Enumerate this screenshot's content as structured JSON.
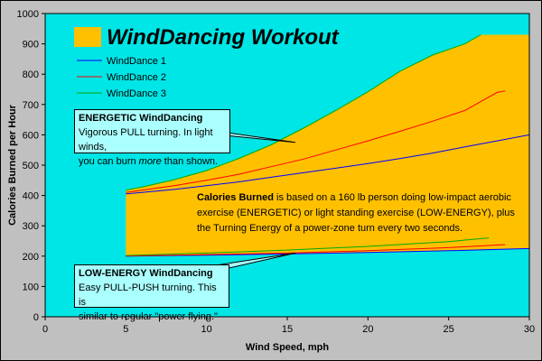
{
  "chart_data": {
    "type": "line",
    "title": "WindDancing Workout",
    "xlabel": "Wind Speed, mph",
    "ylabel": "Calories Burned per Hour",
    "xlim": [
      0,
      30
    ],
    "ylim": [
      0,
      1000
    ],
    "x_ticks": [
      "0",
      "5",
      "10",
      "15",
      "20",
      "25",
      "30"
    ],
    "y_ticks": [
      "0",
      "100",
      "200",
      "300",
      "400",
      "500",
      "600",
      "700",
      "800",
      "900",
      "1000"
    ],
    "grid": false,
    "legend_position": "top-left",
    "background_color": "#00e5e5",
    "band_color": "#ffc000",
    "band": {
      "upper": [
        [
          5,
          418
        ],
        [
          6,
          428
        ],
        [
          8,
          452
        ],
        [
          10,
          482
        ],
        [
          12,
          522
        ],
        [
          14,
          567
        ],
        [
          16,
          622
        ],
        [
          18,
          680
        ],
        [
          20,
          742
        ],
        [
          22,
          810
        ],
        [
          24,
          863
        ],
        [
          26,
          900
        ],
        [
          27,
          930
        ],
        [
          30,
          930
        ]
      ],
      "lower": [
        [
          5,
          200
        ],
        [
          10,
          205
        ],
        [
          15,
          208
        ],
        [
          20,
          212
        ],
        [
          25,
          218
        ],
        [
          30,
          225
        ]
      ]
    },
    "series": [
      {
        "name": "WindDance 1",
        "color": "#0000ff",
        "energetic": [
          [
            5,
            405
          ],
          [
            8,
            420
          ],
          [
            10,
            432
          ],
          [
            12,
            445
          ],
          [
            14,
            460
          ],
          [
            16,
            475
          ],
          [
            18,
            490
          ],
          [
            20,
            505
          ],
          [
            22,
            522
          ],
          [
            24,
            540
          ],
          [
            26,
            560
          ],
          [
            28,
            580
          ],
          [
            30,
            600
          ]
        ],
        "low_energy": [
          [
            5,
            200
          ],
          [
            10,
            203
          ],
          [
            15,
            207
          ],
          [
            20,
            212
          ],
          [
            25,
            218
          ],
          [
            30,
            225
          ]
        ]
      },
      {
        "name": "WindDance 2",
        "color": "#ff0000",
        "energetic": [
          [
            5,
            410
          ],
          [
            8,
            432
          ],
          [
            10,
            450
          ],
          [
            12,
            470
          ],
          [
            14,
            495
          ],
          [
            16,
            520
          ],
          [
            18,
            550
          ],
          [
            20,
            580
          ],
          [
            22,
            612
          ],
          [
            24,
            645
          ],
          [
            26,
            680
          ],
          [
            28,
            740
          ],
          [
            28.5,
            745
          ]
        ],
        "low_energy": [
          [
            5,
            200
          ],
          [
            10,
            205
          ],
          [
            15,
            210
          ],
          [
            20,
            218
          ],
          [
            25,
            228
          ],
          [
            28.5,
            238
          ]
        ]
      },
      {
        "name": "WindDance 3",
        "color": "#00aa00",
        "energetic": [
          [
            5,
            418
          ],
          [
            6,
            428
          ],
          [
            8,
            452
          ],
          [
            10,
            482
          ],
          [
            12,
            522
          ],
          [
            14,
            567
          ],
          [
            16,
            622
          ],
          [
            18,
            680
          ],
          [
            20,
            742
          ],
          [
            22,
            810
          ],
          [
            24,
            863
          ],
          [
            26,
            900
          ],
          [
            27,
            930
          ]
        ],
        "low_energy": [
          [
            5,
            202
          ],
          [
            10,
            210
          ],
          [
            15,
            220
          ],
          [
            20,
            232
          ],
          [
            25,
            248
          ],
          [
            27.5,
            260
          ]
        ]
      }
    ],
    "annotations": {
      "energetic": {
        "title": "ENERGETIC  WindDancing",
        "line1": "Vigorous PULL turning.  In light winds,",
        "line2_before": "you can burn ",
        "line2_em": "more",
        "line2_after": " than shown.",
        "pointer_to": [
          15.5,
          575
        ]
      },
      "low_energy": {
        "title": "LOW-ENERGY  WindDancing",
        "line1": "Easy PULL-PUSH turning.  This is",
        "line2": "similar to regular \"power flying.\"",
        "pointer_to": [
          15.5,
          210
        ]
      },
      "calories": {
        "bold": "Calories Burned",
        "text": " is based on a 160 lb person doing low-impact aerobic exercise (ENERGETIC) or light standing exercise (LOW-ENERGY), plus the Turning Energy of a power-zone turn every two seconds."
      }
    }
  }
}
